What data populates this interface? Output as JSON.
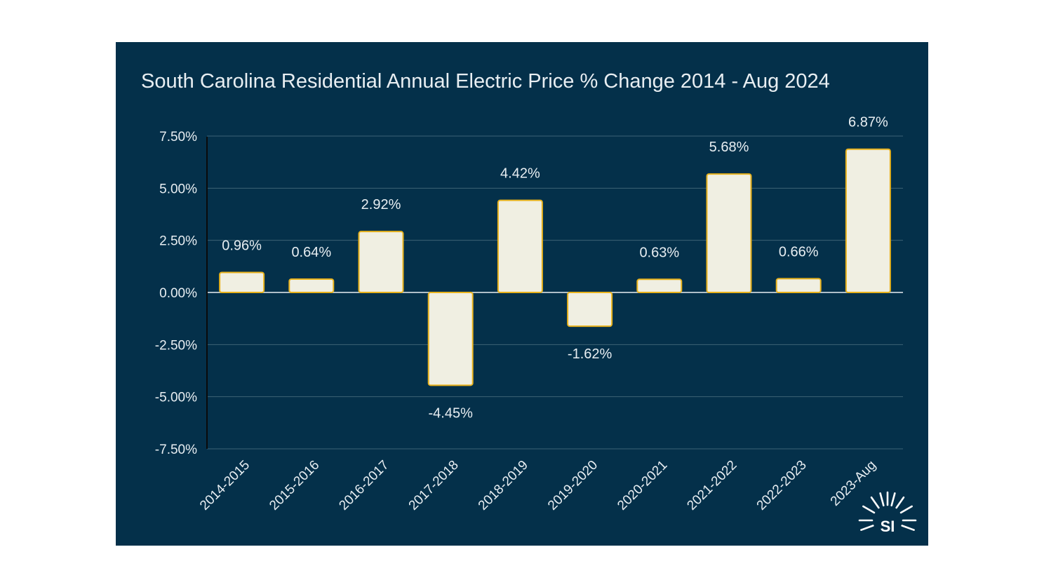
{
  "chart_data": {
    "type": "bar",
    "title": "South Carolina Residential Annual Electric Price % Change 2014 - Aug 2024",
    "xlabel": "",
    "ylabel": "",
    "categories": [
      "2014-2015",
      "2015-2016",
      "2016-2017",
      "2017-2018",
      "2018-2019",
      "2019-2020",
      "2020-2021",
      "2021-2022",
      "2022-2023",
      "2023-Aug"
    ],
    "values": [
      0.96,
      0.64,
      2.92,
      -4.45,
      4.42,
      -1.62,
      0.63,
      5.68,
      0.66,
      6.87
    ],
    "data_labels": [
      "0.96%",
      "0.64%",
      "2.92%",
      "-4.45%",
      "4.42%",
      "-1.62%",
      "0.63%",
      "5.68%",
      "0.66%",
      "6.87%"
    ],
    "ylim": [
      -7.5,
      7.5
    ],
    "yticks": [
      7.5,
      5.0,
      2.5,
      0.0,
      -2.5,
      -5.0,
      -7.5
    ],
    "ytick_labels": [
      "7.50%",
      "5.00%",
      "2.50%",
      "0.00%",
      "-2.50%",
      "-5.00%",
      "-7.50%"
    ],
    "grid": true,
    "legend": "none"
  },
  "colors": {
    "background": "#04304a",
    "bar_fill": "#f0efe2",
    "bar_stroke": "#e8b21c",
    "text": "#e8eef2"
  },
  "logo": {
    "text": "SI",
    "icon": "sun-rays-icon"
  }
}
